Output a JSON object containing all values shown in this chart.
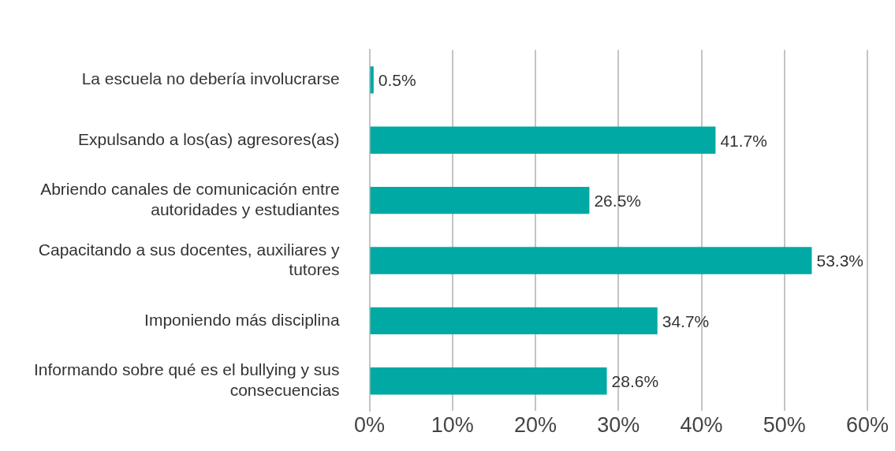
{
  "chart_data": {
    "type": "bar",
    "orientation": "horizontal",
    "categories": [
      "La escuela no debería involucrarse",
      "Expulsando a los(as) agresores(as)",
      "Abriendo canales de comunicación entre autoridades y estudiantes",
      "Capacitando a sus docentes, auxiliares y tutores",
      "Imponiendo más disciplina",
      "Informando sobre qué es el bullying y sus consecuencias"
    ],
    "values": [
      0.5,
      41.7,
      26.5,
      53.3,
      34.7,
      28.6
    ],
    "color": "#00a9a4",
    "value_labels": [
      "0.5%",
      "41.7%",
      "26.5%",
      "53.3%",
      "34.7%",
      "28.6%"
    ],
    "xlim": [
      0,
      60
    ],
    "xticks": [
      {
        "value": 0,
        "label": "0%"
      },
      {
        "value": 10,
        "label": "10%"
      },
      {
        "value": 20,
        "label": "20%"
      },
      {
        "value": 30,
        "label": "30%"
      },
      {
        "value": 40,
        "label": "40%"
      },
      {
        "value": 50,
        "label": "50%"
      },
      {
        "value": 60,
        "label": "60%"
      }
    ],
    "grid": "x",
    "legend": false
  }
}
